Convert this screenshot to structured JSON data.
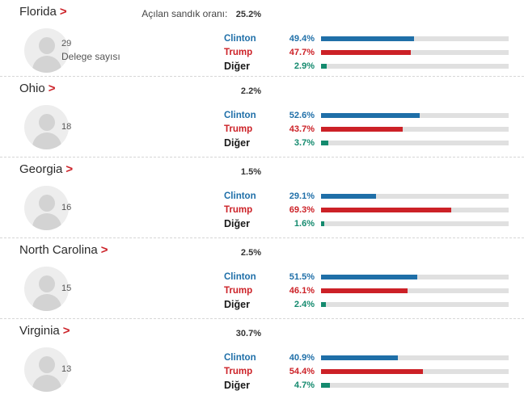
{
  "header": {
    "turnout_label": "Açılan sandık oranı:"
  },
  "colors": {
    "clinton": "#1f6fa8",
    "trump": "#cc2127",
    "other": "#148a6e",
    "bar_track": "#e0e0e0",
    "arrow_red": "#cc2127"
  },
  "states": [
    {
      "name": "Florida",
      "arrow": ">",
      "turnout_label": "Açılan sandık oranı:",
      "turnout": "25.2%",
      "delegates": "29",
      "delegates_label": "Delege sayısı",
      "rows": [
        {
          "candidate": "Clinton",
          "value": "49.4%",
          "pct": 49.4,
          "key": "clinton"
        },
        {
          "candidate": "Trump",
          "value": "47.7%",
          "pct": 47.7,
          "key": "trump"
        },
        {
          "candidate": "Diğer",
          "value": "2.9%",
          "pct": 2.9,
          "key": "other"
        }
      ]
    },
    {
      "name": "Ohio",
      "arrow": ">",
      "turnout_label": "",
      "turnout": "2.2%",
      "delegates": "18",
      "delegates_label": "",
      "rows": [
        {
          "candidate": "Clinton",
          "value": "52.6%",
          "pct": 52.6,
          "key": "clinton"
        },
        {
          "candidate": "Trump",
          "value": "43.7%",
          "pct": 43.7,
          "key": "trump"
        },
        {
          "candidate": "Diğer",
          "value": "3.7%",
          "pct": 3.7,
          "key": "other"
        }
      ]
    },
    {
      "name": "Georgia",
      "arrow": ">",
      "turnout_label": "",
      "turnout": "1.5%",
      "delegates": "16",
      "delegates_label": "",
      "rows": [
        {
          "candidate": "Clinton",
          "value": "29.1%",
          "pct": 29.1,
          "key": "clinton"
        },
        {
          "candidate": "Trump",
          "value": "69.3%",
          "pct": 69.3,
          "key": "trump"
        },
        {
          "candidate": "Diğer",
          "value": "1.6%",
          "pct": 1.6,
          "key": "other"
        }
      ]
    },
    {
      "name": "North Carolina",
      "arrow": ">",
      "turnout_label": "",
      "turnout": "2.5%",
      "delegates": "15",
      "delegates_label": "",
      "rows": [
        {
          "candidate": "Clinton",
          "value": "51.5%",
          "pct": 51.5,
          "key": "clinton"
        },
        {
          "candidate": "Trump",
          "value": "46.1%",
          "pct": 46.1,
          "key": "trump"
        },
        {
          "candidate": "Diğer",
          "value": "2.4%",
          "pct": 2.4,
          "key": "other"
        }
      ]
    },
    {
      "name": "Virginia",
      "arrow": ">",
      "turnout_label": "",
      "turnout": "30.7%",
      "delegates": "13",
      "delegates_label": "",
      "rows": [
        {
          "candidate": "Clinton",
          "value": "40.9%",
          "pct": 40.9,
          "key": "clinton"
        },
        {
          "candidate": "Trump",
          "value": "54.4%",
          "pct": 54.4,
          "key": "trump"
        },
        {
          "candidate": "Diğer",
          "value": "4.7%",
          "pct": 4.7,
          "key": "other"
        }
      ]
    }
  ],
  "chart_data": [
    {
      "type": "bar",
      "title": "Florida",
      "turnout_reported": "25.2%",
      "delegates": 29,
      "categories": [
        "Clinton",
        "Trump",
        "Diğer"
      ],
      "values": [
        49.4,
        47.7,
        2.9
      ],
      "unit": "%",
      "xlim": [
        0,
        100
      ]
    },
    {
      "type": "bar",
      "title": "Ohio",
      "turnout_reported": "2.2%",
      "delegates": 18,
      "categories": [
        "Clinton",
        "Trump",
        "Diğer"
      ],
      "values": [
        52.6,
        43.7,
        3.7
      ],
      "unit": "%",
      "xlim": [
        0,
        100
      ]
    },
    {
      "type": "bar",
      "title": "Georgia",
      "turnout_reported": "1.5%",
      "delegates": 16,
      "categories": [
        "Clinton",
        "Trump",
        "Diğer"
      ],
      "values": [
        29.1,
        69.3,
        1.6
      ],
      "unit": "%",
      "xlim": [
        0,
        100
      ]
    },
    {
      "type": "bar",
      "title": "North Carolina",
      "turnout_reported": "2.5%",
      "delegates": 15,
      "categories": [
        "Clinton",
        "Trump",
        "Diğer"
      ],
      "values": [
        51.5,
        46.1,
        2.4
      ],
      "unit": "%",
      "xlim": [
        0,
        100
      ]
    },
    {
      "type": "bar",
      "title": "Virginia",
      "turnout_reported": "30.7%",
      "delegates": 13,
      "categories": [
        "Clinton",
        "Trump",
        "Diğer"
      ],
      "values": [
        40.9,
        54.4,
        4.7
      ],
      "unit": "%",
      "xlim": [
        0,
        100
      ]
    }
  ]
}
